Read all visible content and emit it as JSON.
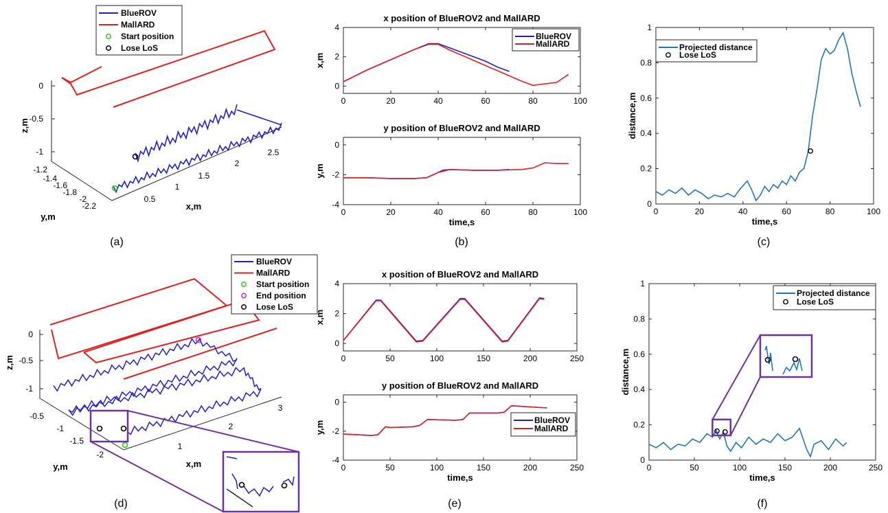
{
  "colors": {
    "bluerov": "#1f1fc8",
    "mallard": "#e02020",
    "projected": "#1f77b4",
    "start": "#22cc22",
    "end": "#cc22cc",
    "zoom": "#7030a0"
  },
  "chart_data": [
    {
      "id": "a",
      "type": "line3d",
      "caption": "(a)",
      "xlabel": "x,m",
      "ylabel": "y,m",
      "zlabel": "z,m",
      "z_ticks": [
        "0",
        "-0.5",
        "-1"
      ],
      "y_ticks": [
        "-1.2",
        "-1.4",
        "-1.6",
        "-1.8",
        "-2",
        "-2.2"
      ],
      "x_ticks": [
        "0.5",
        "1",
        "1.5",
        "2",
        "2.5"
      ],
      "legend": [
        "BlueROV",
        "MallARD",
        "Start position",
        "Lose LoS"
      ]
    },
    {
      "id": "b1",
      "type": "line",
      "caption": "(b)",
      "title": "x position of BlueROV2 and MallARD",
      "ylabel": "x,m",
      "xlabel": "",
      "xlim": [
        0,
        100
      ],
      "ylim": [
        -0.5,
        4
      ],
      "x_ticks": [
        "0",
        "20",
        "40",
        "60",
        "80",
        "100"
      ],
      "x_tick_values": [
        0,
        20,
        40,
        60,
        80,
        100
      ],
      "y_ticks": [
        "0",
        "2",
        "4"
      ],
      "y_tick_values": [
        0,
        2,
        4
      ],
      "legend": [
        "BlueROV",
        "MallARD"
      ],
      "series": [
        {
          "name": "BlueROV",
          "x": [
            0,
            10,
            20,
            30,
            36,
            40,
            45,
            50,
            55,
            60,
            65,
            70
          ],
          "y": [
            0.3,
            1.1,
            1.8,
            2.5,
            2.9,
            2.9,
            2.6,
            2.3,
            2.0,
            1.7,
            1.3,
            1.0
          ]
        },
        {
          "name": "MallARD",
          "x": [
            0,
            10,
            20,
            30,
            36,
            40,
            45,
            50,
            55,
            60,
            65,
            70,
            75,
            80,
            85,
            90,
            95
          ],
          "y": [
            0.3,
            1.1,
            1.8,
            2.5,
            2.85,
            2.85,
            2.45,
            2.1,
            1.75,
            1.4,
            1.05,
            0.7,
            0.35,
            0.05,
            0.15,
            0.25,
            0.8
          ]
        }
      ]
    },
    {
      "id": "b2",
      "type": "line",
      "title": "y position of BlueROV2 and MallARD",
      "ylabel": "y,m",
      "xlabel": "time,s",
      "xlim": [
        0,
        100
      ],
      "ylim": [
        -4,
        0.5
      ],
      "x_ticks": [
        "0",
        "20",
        "40",
        "60",
        "80",
        "100"
      ],
      "x_tick_values": [
        0,
        20,
        40,
        60,
        80,
        100
      ],
      "y_ticks": [
        "0",
        "-2",
        "-4"
      ],
      "y_tick_values": [
        0,
        -2,
        -4
      ],
      "series": [
        {
          "name": "BlueROV",
          "x": [
            0,
            10,
            20,
            30,
            35,
            38,
            42,
            45,
            55,
            65,
            70
          ],
          "y": [
            -2.2,
            -2.2,
            -2.25,
            -2.25,
            -2.2,
            -2.0,
            -1.7,
            -1.65,
            -1.7,
            -1.7,
            -1.65
          ]
        },
        {
          "name": "MallARD",
          "x": [
            0,
            10,
            20,
            30,
            35,
            40,
            45,
            55,
            65,
            75,
            80,
            85,
            90,
            95
          ],
          "y": [
            -2.2,
            -2.2,
            -2.25,
            -2.25,
            -2.2,
            -1.85,
            -1.65,
            -1.7,
            -1.7,
            -1.65,
            -1.55,
            -1.2,
            -1.25,
            -1.25
          ]
        }
      ]
    },
    {
      "id": "c",
      "type": "line",
      "caption": "(c)",
      "xlabel": "time,s",
      "ylabel": "distance,m",
      "xlim": [
        0,
        100
      ],
      "ylim": [
        0,
        1
      ],
      "x_ticks": [
        "0",
        "20",
        "40",
        "60",
        "80",
        "100"
      ],
      "x_tick_values": [
        0,
        20,
        40,
        60,
        80,
        100
      ],
      "y_ticks": [
        "0",
        "0.2",
        "0.4",
        "0.6",
        "0.8",
        "1"
      ],
      "y_tick_values": [
        0,
        0.2,
        0.4,
        0.6,
        0.8,
        1
      ],
      "legend": [
        "Projected distance",
        "Lose LoS"
      ],
      "series": [
        {
          "name": "Projected distance",
          "x": [
            0,
            3,
            6,
            9,
            12,
            15,
            18,
            21,
            24,
            27,
            30,
            33,
            36,
            39,
            42,
            44,
            46,
            48,
            50,
            52,
            54,
            56,
            58,
            60,
            62,
            64,
            66,
            68,
            70,
            72,
            74,
            76,
            78,
            80,
            82,
            84,
            86,
            88,
            90,
            92,
            94
          ],
          "y": [
            0.07,
            0.05,
            0.08,
            0.06,
            0.09,
            0.05,
            0.08,
            0.06,
            0.03,
            0.05,
            0.04,
            0.06,
            0.04,
            0.09,
            0.13,
            0.08,
            0.02,
            0.05,
            0.1,
            0.07,
            0.11,
            0.09,
            0.13,
            0.11,
            0.16,
            0.13,
            0.18,
            0.2,
            0.3,
            0.5,
            0.65,
            0.82,
            0.88,
            0.85,
            0.87,
            0.93,
            0.97,
            0.88,
            0.74,
            0.64,
            0.55
          ]
        },
        {
          "name": "Lose LoS",
          "type": "scatter",
          "x": [
            71
          ],
          "y": [
            0.3
          ]
        }
      ]
    },
    {
      "id": "d",
      "type": "line3d",
      "caption": "(d)",
      "xlabel": "x,m",
      "ylabel": "y,m",
      "zlabel": "z,m",
      "z_ticks": [
        "0",
        "-0.5",
        "-1"
      ],
      "y_ticks": [
        "-0.5",
        "-1",
        "-1.5",
        "-2"
      ],
      "x_ticks": [
        "1",
        "2",
        "3"
      ],
      "legend": [
        "BlueROV",
        "MallARD",
        "Start position",
        "End position",
        "Lose LoS"
      ]
    },
    {
      "id": "e1",
      "type": "line",
      "caption": "(e)",
      "title": "x position of BlueROV2 and MallARD",
      "ylabel": "x,m",
      "xlabel": "",
      "xlim": [
        0,
        250
      ],
      "ylim": [
        -0.5,
        4
      ],
      "x_ticks": [
        "0",
        "50",
        "100",
        "150",
        "200",
        "250"
      ],
      "x_tick_values": [
        0,
        50,
        100,
        150,
        200,
        250
      ],
      "y_ticks": [
        "0",
        "2",
        "4"
      ],
      "y_tick_values": [
        0,
        2,
        4
      ],
      "series": [
        {
          "name": "BlueROV",
          "x": [
            0,
            35,
            40,
            78,
            85,
            125,
            130,
            170,
            176,
            210,
            215
          ],
          "y": [
            0.2,
            2.9,
            2.9,
            0.15,
            0.2,
            3.0,
            3.0,
            0.15,
            0.2,
            3.05,
            3.0
          ]
        },
        {
          "name": "MallARD",
          "x": [
            0,
            35,
            40,
            78,
            85,
            125,
            130,
            170,
            176,
            210,
            215
          ],
          "y": [
            0.2,
            2.85,
            2.85,
            0.1,
            0.15,
            2.95,
            2.95,
            0.1,
            0.15,
            3.0,
            2.95
          ]
        }
      ]
    },
    {
      "id": "e2",
      "type": "line",
      "title": "y position of BlueROV2 and MallARD",
      "ylabel": "y,m",
      "xlabel": "time,s",
      "xlim": [
        0,
        250
      ],
      "ylim": [
        -4,
        0.5
      ],
      "x_ticks": [
        "0",
        "50",
        "100",
        "150",
        "200",
        "250"
      ],
      "x_tick_values": [
        0,
        50,
        100,
        150,
        200,
        250
      ],
      "y_ticks": [
        "0",
        "-2",
        "-4"
      ],
      "y_tick_values": [
        0,
        -2,
        -4
      ],
      "legend": [
        "BlueROV",
        "MallARD"
      ],
      "series": [
        {
          "name": "BlueROV",
          "x": [
            0,
            30,
            37,
            45,
            50,
            75,
            82,
            90,
            120,
            128,
            135,
            165,
            172,
            180,
            218
          ],
          "y": [
            -2.2,
            -2.3,
            -2.25,
            -1.7,
            -1.75,
            -1.7,
            -1.6,
            -1.2,
            -1.25,
            -1.2,
            -0.75,
            -0.75,
            -0.7,
            -0.25,
            -0.4
          ]
        },
        {
          "name": "MallARD",
          "x": [
            0,
            30,
            37,
            45,
            50,
            75,
            82,
            90,
            120,
            128,
            135,
            165,
            172,
            180,
            218
          ],
          "y": [
            -2.2,
            -2.3,
            -2.25,
            -1.7,
            -1.75,
            -1.7,
            -1.6,
            -1.2,
            -1.25,
            -1.2,
            -0.75,
            -0.75,
            -0.7,
            -0.25,
            -0.4
          ]
        }
      ]
    },
    {
      "id": "f",
      "type": "line",
      "caption": "(f)",
      "xlabel": "time,s",
      "ylabel": "distance,m",
      "xlim": [
        0,
        250
      ],
      "ylim": [
        0,
        1
      ],
      "x_ticks": [
        "0",
        "50",
        "100",
        "150",
        "200",
        "250"
      ],
      "x_tick_values": [
        0,
        50,
        100,
        150,
        200,
        250
      ],
      "y_ticks": [
        "0",
        "0.2",
        "0.4",
        "0.6",
        "0.8",
        "1"
      ],
      "y_tick_values": [
        0,
        0.2,
        0.4,
        0.6,
        0.8,
        1
      ],
      "legend": [
        "Projected distance",
        "Lose LoS"
      ],
      "series": [
        {
          "name": "Projected distance",
          "x": [
            0,
            8,
            16,
            24,
            32,
            40,
            48,
            56,
            64,
            70,
            74,
            78,
            82,
            86,
            90,
            96,
            102,
            110,
            118,
            126,
            134,
            142,
            150,
            158,
            166,
            170,
            174,
            178,
            182,
            190,
            198,
            206,
            214,
            218
          ],
          "y": [
            0.09,
            0.07,
            0.1,
            0.06,
            0.09,
            0.08,
            0.12,
            0.1,
            0.15,
            0.13,
            0.17,
            0.12,
            0.16,
            0.08,
            0.05,
            0.1,
            0.07,
            0.13,
            0.09,
            0.12,
            0.1,
            0.15,
            0.11,
            0.13,
            0.18,
            0.12,
            0.06,
            0.02,
            0.09,
            0.11,
            0.06,
            0.12,
            0.08,
            0.1
          ]
        },
        {
          "name": "Lose LoS",
          "type": "scatter",
          "x": [
            75,
            84
          ],
          "y": [
            0.165,
            0.16
          ]
        }
      ]
    }
  ]
}
